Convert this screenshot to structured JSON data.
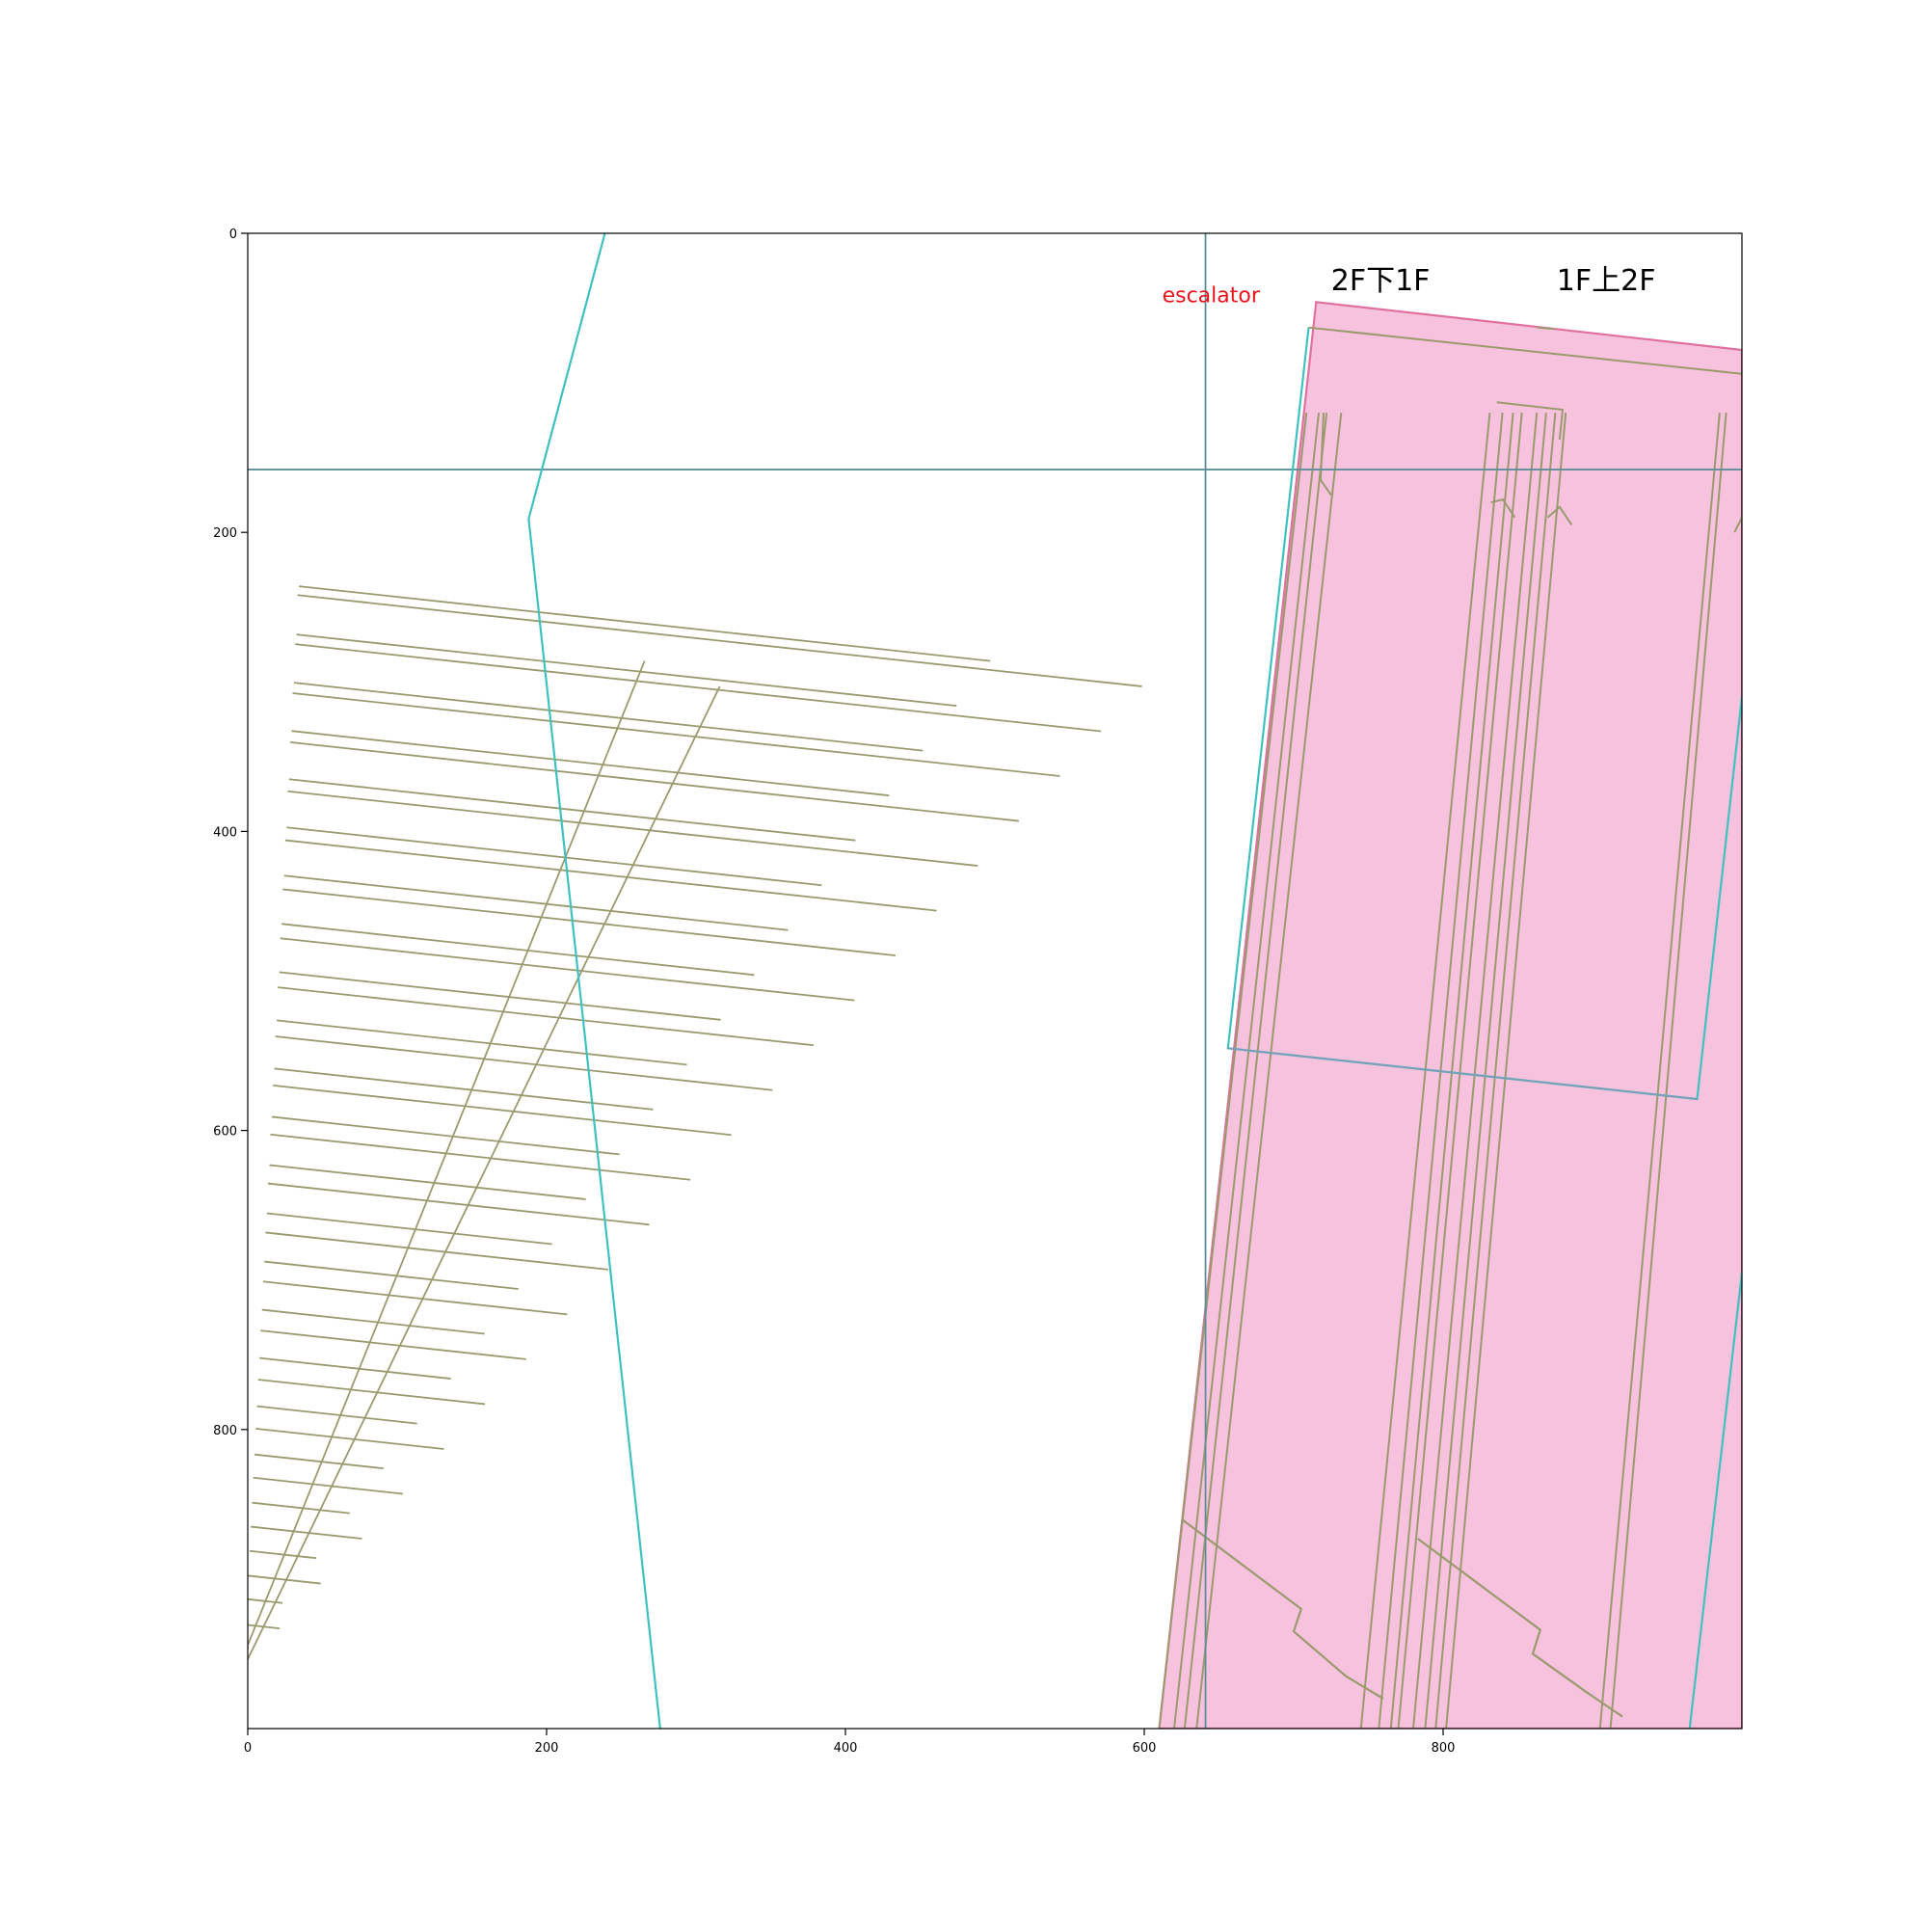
{
  "colors": {
    "escalator_fill": "#f7c2de",
    "escalator_edge": "#e0709f",
    "structure_line": "#9b9a6e",
    "cyan_outline": "#3fc1c0",
    "gridline": "#5e8e97",
    "blue_line": "#7a9fb8",
    "label_red": "#e8141c",
    "label_black": "#000000"
  },
  "chart_data": {
    "type": "floor-plan-overlay",
    "xlim": [
      0,
      1000
    ],
    "ylim": [
      1000,
      0
    ],
    "x_ticks": [
      0,
      200,
      400,
      600,
      800
    ],
    "y_ticks": [
      0,
      200,
      400,
      600,
      800
    ],
    "labels": {
      "escalator": "escalator",
      "down_label": "2F下1F",
      "up_label": "1F上2F"
    },
    "reference_lines": {
      "vertical_x": 641,
      "horizontal_y": 158
    },
    "cyan_polyline": [
      [
        239,
        0
      ],
      [
        188,
        191
      ],
      [
        276,
        1000
      ]
    ],
    "escalator_polygon": [
      [
        715,
        46
      ],
      [
        1000,
        78
      ],
      [
        1000,
        1000
      ],
      [
        610,
        1000
      ]
    ],
    "inner_outline": [
      [
        710,
        63
      ],
      [
        1000,
        94
      ],
      [
        1000,
        1000
      ],
      [
        612,
        1000
      ]
    ],
    "blue_cross_line": [
      [
        656,
        545
      ],
      [
        970,
        579
      ]
    ],
    "cyan_right_box": [
      [
        710,
        63
      ],
      [
        656,
        545
      ],
      [
        970,
        579
      ],
      [
        1000,
        310
      ]
    ],
    "cyan_right_edge": [
      [
        1000,
        695
      ],
      [
        965,
        1000
      ]
    ]
  }
}
